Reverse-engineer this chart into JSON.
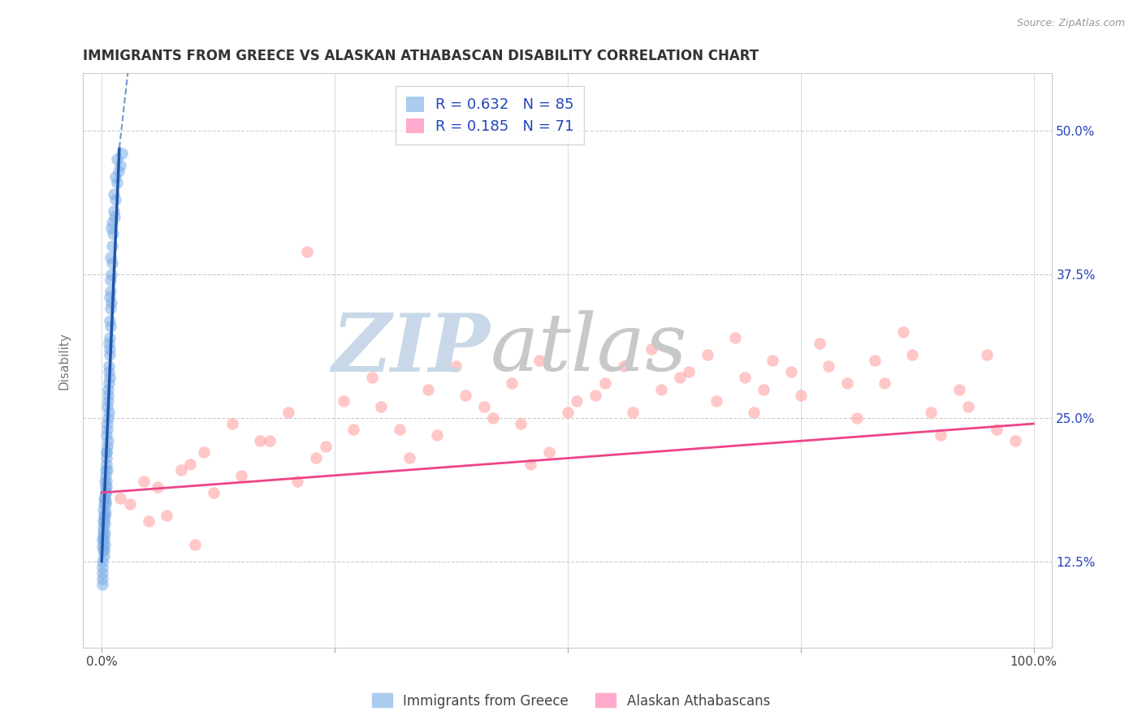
{
  "title": "IMMIGRANTS FROM GREECE VS ALASKAN ATHABASCAN DISABILITY CORRELATION CHART",
  "source": "Source: ZipAtlas.com",
  "ylabel": "Disability",
  "xlim": [
    -2.0,
    102.0
  ],
  "ylim": [
    5.0,
    55.0
  ],
  "yticks": [
    12.5,
    25.0,
    37.5,
    50.0
  ],
  "ytick_labels": [
    "12.5%",
    "25.0%",
    "37.5%",
    "50.0%"
  ],
  "xtick_positions": [
    0,
    25,
    50,
    75,
    100
  ],
  "xtick_labels": [
    "0.0%",
    "",
    "",
    "",
    "100.0%"
  ],
  "background_color": "#ffffff",
  "series1": {
    "label": "Immigrants from Greece",
    "color": "#7aaee8",
    "R": 0.632,
    "N": 85,
    "x": [
      0.05,
      0.08,
      0.1,
      0.12,
      0.15,
      0.18,
      0.2,
      0.22,
      0.25,
      0.28,
      0.3,
      0.32,
      0.35,
      0.38,
      0.4,
      0.42,
      0.45,
      0.48,
      0.5,
      0.52,
      0.55,
      0.58,
      0.6,
      0.62,
      0.65,
      0.68,
      0.7,
      0.72,
      0.75,
      0.78,
      0.8,
      0.82,
      0.85,
      0.88,
      0.9,
      0.92,
      0.95,
      0.98,
      1.0,
      1.05,
      1.1,
      1.15,
      1.2,
      1.3,
      1.4,
      1.5,
      1.6,
      1.8,
      2.0,
      2.2,
      0.04,
      0.06,
      0.09,
      0.11,
      0.14,
      0.16,
      0.19,
      0.21,
      0.24,
      0.26,
      0.29,
      0.31,
      0.34,
      0.36,
      0.39,
      0.41,
      0.44,
      0.46,
      0.49,
      0.51,
      0.54,
      0.57,
      0.63,
      0.67,
      0.73,
      0.77,
      0.83,
      0.87,
      0.93,
      0.97,
      1.03,
      1.08,
      1.25,
      1.45,
      1.65
    ],
    "y": [
      14.5,
      12.0,
      13.8,
      16.0,
      15.5,
      17.0,
      14.2,
      13.5,
      18.0,
      16.5,
      15.8,
      19.5,
      14.0,
      16.8,
      20.0,
      17.5,
      18.5,
      22.0,
      21.0,
      19.0,
      23.5,
      20.5,
      22.5,
      24.0,
      25.0,
      23.0,
      26.5,
      27.0,
      28.0,
      25.5,
      29.0,
      30.5,
      31.0,
      28.5,
      32.0,
      33.0,
      34.5,
      36.0,
      37.5,
      35.0,
      38.5,
      40.0,
      41.0,
      43.0,
      42.5,
      44.0,
      45.5,
      46.5,
      47.0,
      48.0,
      11.0,
      10.5,
      12.5,
      11.5,
      13.5,
      14.8,
      15.2,
      13.0,
      16.2,
      14.5,
      17.5,
      15.0,
      18.0,
      16.5,
      19.0,
      17.8,
      20.5,
      18.5,
      21.5,
      19.5,
      22.0,
      24.5,
      26.0,
      27.5,
      29.5,
      31.5,
      33.5,
      35.5,
      37.0,
      39.0,
      41.5,
      42.0,
      44.5,
      46.0,
      47.5
    ]
  },
  "series2": {
    "label": "Alaskan Athabascans",
    "color": "#ff9999",
    "R": 0.185,
    "N": 71,
    "x": [
      2.0,
      4.5,
      7.0,
      9.5,
      12.0,
      15.0,
      18.0,
      21.0,
      24.0,
      27.0,
      30.0,
      33.0,
      36.0,
      39.0,
      42.0,
      45.0,
      48.0,
      51.0,
      54.0,
      57.0,
      60.0,
      63.0,
      66.0,
      69.0,
      72.0,
      75.0,
      78.0,
      81.0,
      84.0,
      87.0,
      90.0,
      93.0,
      96.0,
      3.0,
      6.0,
      8.5,
      11.0,
      14.0,
      17.0,
      20.0,
      23.0,
      26.0,
      29.0,
      32.0,
      35.0,
      38.0,
      41.0,
      44.0,
      47.0,
      50.0,
      53.0,
      56.0,
      59.0,
      62.0,
      65.0,
      68.0,
      71.0,
      74.0,
      77.0,
      80.0,
      83.0,
      86.0,
      89.0,
      92.0,
      95.0,
      98.0,
      5.0,
      10.0,
      22.0,
      46.0,
      70.0
    ],
    "y": [
      18.0,
      19.5,
      16.5,
      21.0,
      18.5,
      20.0,
      23.0,
      19.5,
      22.5,
      24.0,
      26.0,
      21.5,
      23.5,
      27.0,
      25.0,
      24.5,
      22.0,
      26.5,
      28.0,
      25.5,
      27.5,
      29.0,
      26.5,
      28.5,
      30.0,
      27.0,
      29.5,
      25.0,
      28.0,
      30.5,
      23.5,
      26.0,
      24.0,
      17.5,
      19.0,
      20.5,
      22.0,
      24.5,
      23.0,
      25.5,
      21.5,
      26.5,
      28.5,
      24.0,
      27.5,
      29.5,
      26.0,
      28.0,
      30.0,
      25.5,
      27.0,
      29.5,
      31.0,
      28.5,
      30.5,
      32.0,
      27.5,
      29.0,
      31.5,
      28.0,
      30.0,
      32.5,
      25.5,
      27.5,
      30.5,
      23.0,
      16.0,
      14.0,
      39.5,
      21.0,
      25.5
    ]
  },
  "trend1_solid": {
    "x_start": 0.0,
    "x_end": 1.9,
    "y_start": 12.5,
    "y_end": 48.5,
    "color": "#2255aa",
    "linewidth": 2.5
  },
  "trend1_dashed": {
    "x_start": 1.9,
    "x_end": 2.8,
    "y_start": 48.5,
    "y_end": 55.0,
    "color": "#7799cc",
    "linewidth": 1.5,
    "linestyle": "--"
  },
  "trend2": {
    "x_start": 0.0,
    "x_end": 100.0,
    "y_start": 18.5,
    "y_end": 24.5,
    "color": "#ee4488",
    "linewidth": 2.0
  },
  "hlines": [
    {
      "y": 12.5,
      "color": "#cccccc",
      "linestyle": "--",
      "linewidth": 0.8
    },
    {
      "y": 25.0,
      "color": "#cccccc",
      "linestyle": "--",
      "linewidth": 0.8
    },
    {
      "y": 37.5,
      "color": "#cccccc",
      "linestyle": "--",
      "linewidth": 0.8
    },
    {
      "y": 50.0,
      "color": "#cccccc",
      "linestyle": "--",
      "linewidth": 0.8
    }
  ],
  "watermark_zip": "ZIP",
  "watermark_atlas": "atlas",
  "watermark_color_zip": "#c8d8e8",
  "watermark_color_atlas": "#c8c8c8",
  "legend_R_color": "#2244bb",
  "figsize": [
    14.06,
    8.92
  ],
  "dpi": 100
}
